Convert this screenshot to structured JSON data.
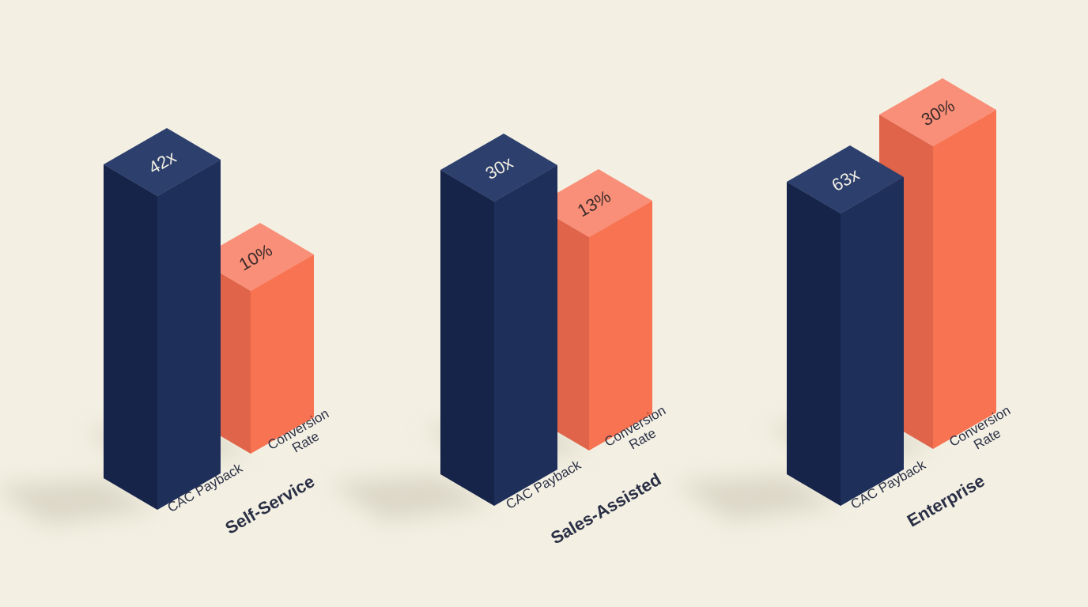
{
  "chart_data": {
    "type": "bar",
    "style": "3d-isometric",
    "categories": [
      "Self-Service",
      "Sales-Assisted",
      "Enterprise"
    ],
    "series": [
      {
        "name": "CAC Payback",
        "values": [
          42,
          30,
          63
        ],
        "labels": [
          "42x",
          "30x",
          "63x"
        ],
        "color": "#1e2f5a"
      },
      {
        "name": "Conversion Rate",
        "values": [
          10,
          13,
          30
        ],
        "labels": [
          "10%",
          "13%",
          "30%"
        ],
        "color": "#f87352"
      }
    ],
    "series_label_lines": {
      "cac": [
        "CAC Payback"
      ],
      "conv": [
        "Conversion",
        "Rate"
      ]
    },
    "title": "",
    "xlabel": "",
    "ylabel": "",
    "grid": false,
    "legend": "none",
    "colors": {
      "background": "#f3f0e3",
      "navy": "#1e2f5a",
      "coral": "#f87352",
      "text": "#2a2f45"
    }
  }
}
